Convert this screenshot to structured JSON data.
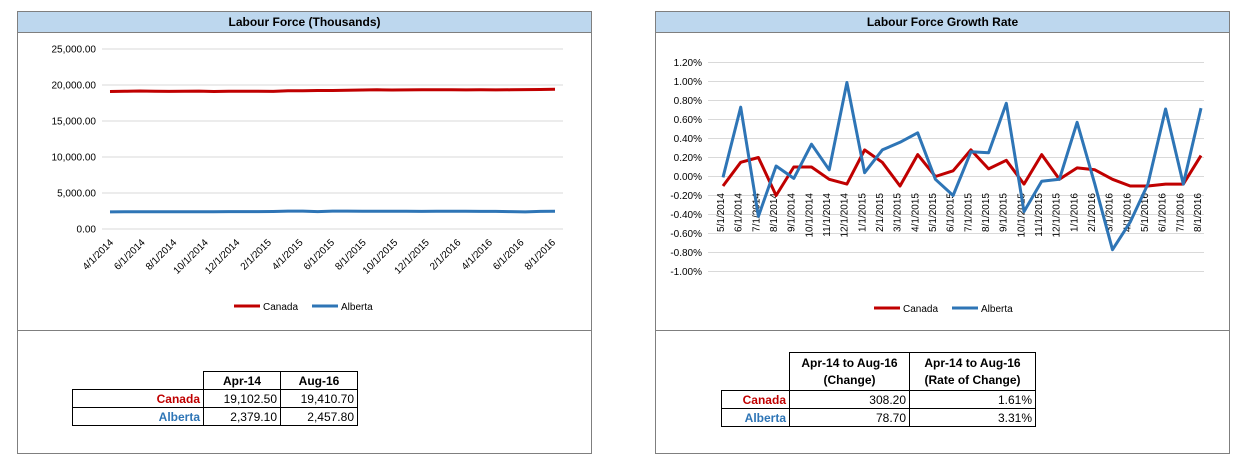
{
  "colors": {
    "canada": "#c00000",
    "alberta": "#2e75b6",
    "header_fill": "#bdd7ee",
    "grid": "#d9d9d9"
  },
  "left_panel": {
    "title": "Labour Force (Thousands)",
    "table": {
      "col_headers": [
        "Apr-14",
        "Aug-16"
      ],
      "rows": [
        {
          "label": "Canada",
          "values": [
            "19,102.50",
            "19,410.70"
          ]
        },
        {
          "label": "Alberta",
          "values": [
            "2,379.10",
            "2,457.80"
          ]
        }
      ]
    }
  },
  "right_panel": {
    "title": "Labour Force Growth Rate",
    "table": {
      "col_headers": [
        {
          "line1": "Apr-14 to Aug-16",
          "line2": "(Change)"
        },
        {
          "line1": "Apr-14 to Aug-16",
          "line2": "(Rate of Change)"
        }
      ],
      "rows": [
        {
          "label": "Canada",
          "values": [
            "308.20",
            "1.61%"
          ]
        },
        {
          "label": "Alberta",
          "values": [
            "78.70",
            "3.31%"
          ]
        }
      ]
    }
  },
  "chart_data": [
    {
      "type": "line",
      "title": "Labour Force (Thousands)",
      "xlabel": "",
      "ylabel": "",
      "ylim": [
        0,
        25000
      ],
      "yticks": [
        "25,000.00",
        "20,000.00",
        "15,000.00",
        "10,000.00",
        "5,000.00",
        "0.00"
      ],
      "ytick_values": [
        25000,
        20000,
        15000,
        10000,
        5000,
        0
      ],
      "x_tick_labels": [
        "4/1/2014",
        "6/1/2014",
        "8/1/2014",
        "10/1/2014",
        "12/1/2014",
        "2/1/2015",
        "4/1/2015",
        "6/1/2015",
        "8/1/2015",
        "10/1/2015",
        "12/1/2015",
        "2/1/2016",
        "4/1/2016",
        "6/1/2016",
        "8/1/2016"
      ],
      "legend": "bottom",
      "grid": true,
      "series": [
        {
          "name": "Canada",
          "color": "#c00000",
          "values": [
            19102.5,
            19130,
            19160,
            19120,
            19110,
            19130,
            19150,
            19100,
            19120,
            19130,
            19120,
            19110,
            19200,
            19210,
            19230,
            19240,
            19260,
            19310,
            19330,
            19300,
            19320,
            19340,
            19330,
            19350,
            19320,
            19330,
            19320,
            19340,
            19360,
            19380,
            19410.7
          ]
        },
        {
          "name": "Alberta",
          "color": "#2e75b6",
          "values": [
            2379.1,
            2396,
            2388,
            2397,
            2400,
            2398,
            2405,
            2408,
            2410,
            2412,
            2420,
            2430,
            2480,
            2490,
            2420,
            2480,
            2490,
            2470,
            2460,
            2470,
            2460,
            2450,
            2460,
            2470,
            2460,
            2450,
            2440,
            2420,
            2380,
            2440,
            2457.8
          ]
        }
      ]
    },
    {
      "type": "line",
      "title": "Labour Force Growth Rate",
      "xlabel": "",
      "ylabel": "",
      "ylim": [
        -1.1,
        1.3
      ],
      "yticks": [
        "1.20%",
        "1.00%",
        "0.80%",
        "0.60%",
        "0.40%",
        "0.20%",
        "0.00%",
        "-0.20%",
        "-0.40%",
        "-0.60%",
        "-0.80%",
        "-1.00%"
      ],
      "ytick_values": [
        1.2,
        1.0,
        0.8,
        0.6,
        0.4,
        0.2,
        0,
        -0.2,
        -0.4,
        -0.6,
        -0.8,
        -1.0
      ],
      "x_tick_labels": [
        "5/1/2014",
        "6/1/2014",
        "7/1/2014",
        "8/1/2014",
        "9/1/2014",
        "10/1/2014",
        "11/1/2014",
        "12/1/2014",
        "1/1/2015",
        "2/1/2015",
        "3/1/2015",
        "4/1/2015",
        "5/1/2015",
        "6/1/2015",
        "7/1/2015",
        "8/1/2015",
        "9/1/2015",
        "10/1/2015",
        "11/1/2015",
        "12/1/2015",
        "1/1/2016",
        "2/1/2016",
        "3/1/2016",
        "4/1/2016",
        "5/1/2016",
        "6/1/2016",
        "7/1/2016",
        "8/1/2016"
      ],
      "legend": "bottom",
      "grid": true,
      "series": [
        {
          "name": "Canada",
          "color": "#c00000",
          "values": [
            -0.1,
            0.15,
            0.2,
            -0.2,
            0.1,
            0.1,
            -0.03,
            -0.08,
            0.28,
            0.15,
            -0.1,
            0.23,
            0.0,
            0.06,
            0.28,
            0.08,
            0.17,
            -0.08,
            0.23,
            -0.03,
            0.09,
            0.07,
            -0.03,
            -0.1,
            -0.1,
            -0.08,
            -0.08,
            0.22
          ]
        },
        {
          "name": "Alberta",
          "color": "#2e75b6",
          "values": [
            -0.01,
            0.73,
            -0.42,
            0.11,
            -0.02,
            0.34,
            0.07,
            0.99,
            0.04,
            0.28,
            0.36,
            0.46,
            -0.03,
            -0.2,
            0.26,
            0.25,
            0.77,
            -0.37,
            -0.05,
            -0.03,
            0.57,
            -0.08,
            -0.77,
            -0.48,
            -0.08,
            0.71,
            -0.08,
            0.72
          ]
        }
      ]
    }
  ]
}
